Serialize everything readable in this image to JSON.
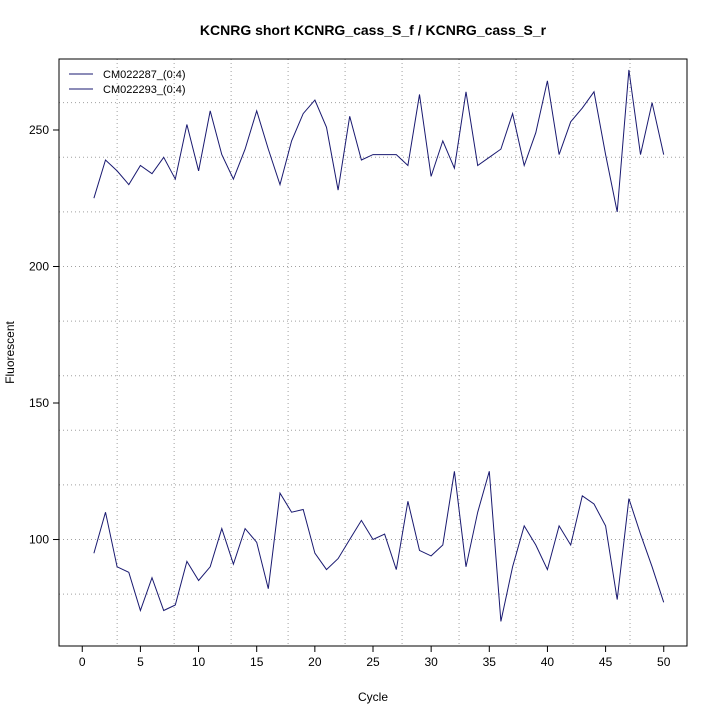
{
  "chart_data": {
    "type": "line",
    "title": "KCNRG short KCNRG_cass_S_f / KCNRG_cass_S_r",
    "xlabel": "Cycle",
    "ylabel": "Fluorescent",
    "xlim": [
      -2,
      52
    ],
    "ylim": [
      61,
      276
    ],
    "xticks": [
      0,
      5,
      10,
      15,
      20,
      25,
      30,
      35,
      40,
      45,
      50
    ],
    "yticks": [
      100,
      150,
      200,
      250
    ],
    "grid": true,
    "legend_position": "top-left",
    "colors": {
      "series": "#191970",
      "grid": "#a0a0a0",
      "axis": "#000000"
    },
    "x": [
      1,
      2,
      3,
      4,
      5,
      6,
      7,
      8,
      9,
      10,
      11,
      12,
      13,
      14,
      15,
      16,
      17,
      18,
      19,
      20,
      21,
      22,
      23,
      24,
      25,
      26,
      27,
      28,
      29,
      30,
      31,
      32,
      33,
      34,
      35,
      36,
      37,
      38,
      39,
      40,
      41,
      42,
      43,
      44,
      45,
      46,
      47,
      48,
      49,
      50
    ],
    "series": [
      {
        "name": "CM022287_(0:4)",
        "values": [
          225,
          239,
          235,
          230,
          237,
          234,
          240,
          232,
          252,
          235,
          257,
          241,
          232,
          243,
          257,
          243,
          230,
          246,
          256,
          261,
          251,
          228,
          255,
          239,
          241,
          241,
          241,
          237,
          263,
          233,
          246,
          236,
          264,
          237,
          240,
          243,
          256,
          237,
          249,
          268,
          241,
          253,
          258,
          264,
          241,
          220,
          272,
          241,
          260,
          241
        ]
      },
      {
        "name": "CM022293_(0:4)",
        "values": [
          95,
          110,
          90,
          88,
          74,
          86,
          74,
          76,
          92,
          85,
          90,
          104,
          91,
          104,
          99,
          82,
          117,
          110,
          111,
          95,
          89,
          93,
          100,
          107,
          100,
          102,
          89,
          114,
          96,
          94,
          98,
          125,
          90,
          110,
          125,
          70,
          90,
          105,
          98,
          89,
          105,
          98,
          116,
          113,
          105,
          78,
          115,
          102,
          90,
          77
        ]
      }
    ]
  }
}
